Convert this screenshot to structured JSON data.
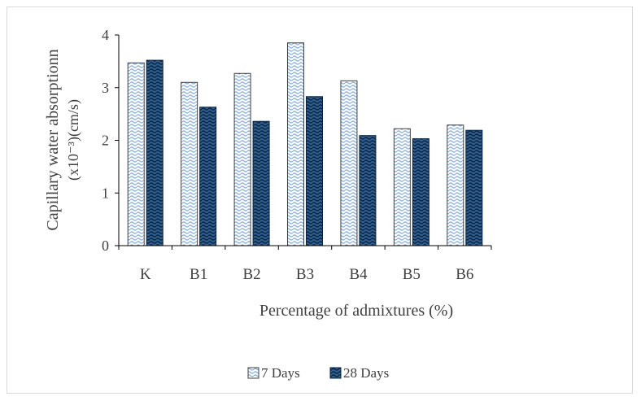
{
  "chart_data": {
    "type": "bar",
    "categories": [
      "K",
      "B1",
      "B2",
      "B3",
      "B4",
      "B5",
      "B6"
    ],
    "series": [
      {
        "name": "7 Days",
        "values": [
          3.47,
          3.1,
          3.27,
          3.85,
          3.13,
          2.22,
          2.29
        ],
        "pattern": "light-wave",
        "color": "#8db3e2"
      },
      {
        "name": "28 Days",
        "values": [
          3.52,
          2.63,
          2.36,
          2.83,
          2.09,
          2.03,
          2.19
        ],
        "pattern": "dark-wave",
        "color": "#1f4e79"
      }
    ],
    "xlabel": "Percentage of admixtures (%)",
    "ylabel_line1": "Capillary water absorptionn",
    "ylabel_line2": "(x10⁻³)(cm/s)",
    "ylim": [
      0,
      4
    ],
    "yticks": [
      "0",
      "1",
      "2",
      "3",
      "4"
    ],
    "grid": false,
    "legend_position": "bottom"
  }
}
